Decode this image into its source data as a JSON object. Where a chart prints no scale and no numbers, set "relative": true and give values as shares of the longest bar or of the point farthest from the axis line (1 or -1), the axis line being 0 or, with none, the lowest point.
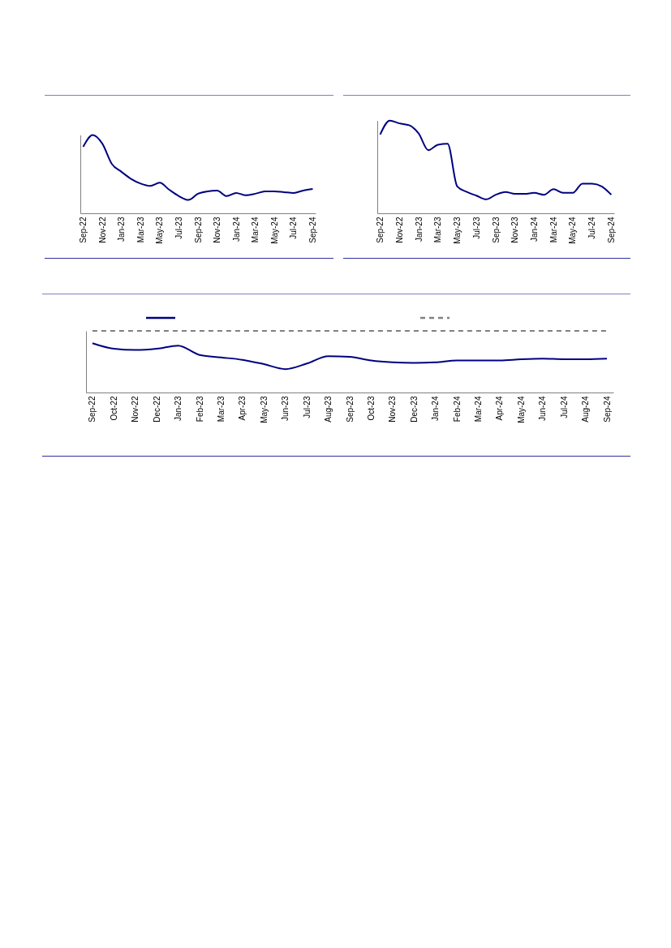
{
  "chart_data": [
    {
      "type": "line",
      "relative": true,
      "categories": [
        "Sep-22",
        null,
        "Nov-22",
        null,
        "Jan-23",
        null,
        "Mar-23",
        null,
        "May-23",
        null,
        "Jul-23",
        null,
        "Sep-23",
        null,
        "Nov-23",
        null,
        "Jan-24",
        null,
        "Mar-24",
        null,
        "May-24",
        null,
        "Jul-24",
        null,
        "Sep-24"
      ],
      "series": [
        {
          "color": "#000080",
          "values": [
            0.85,
            1,
            0.89,
            0.63,
            0.53,
            0.44,
            0.38,
            0.35,
            0.39,
            0.3,
            0.22,
            0.17,
            0.25,
            0.28,
            0.29,
            0.22,
            0.26,
            0.23,
            0.25,
            0.28,
            0.28,
            0.27,
            0.26,
            0.29,
            0.31
          ]
        }
      ]
    },
    {
      "type": "line",
      "relative": true,
      "categories": [
        "Sep-22",
        null,
        "Nov-22",
        null,
        "Jan-23",
        null,
        "Mar-23",
        null,
        "May-23",
        null,
        "Jul-23",
        null,
        "Sep-23",
        null,
        "Nov-23",
        null,
        "Jan-24",
        null,
        "Mar-24",
        null,
        "May-24",
        null,
        "Jul-24",
        null,
        "Sep-24"
      ],
      "series": [
        {
          "color": "#000080",
          "values": [
            0.85,
            1,
            0.97,
            0.95,
            0.86,
            0.68,
            0.74,
            0.75,
            0.29,
            0.23,
            0.19,
            0.15,
            0.2,
            0.23,
            0.21,
            0.21,
            0.22,
            0.2,
            0.26,
            0.22,
            0.22,
            0.32,
            0.32,
            0.29,
            0.2
          ]
        }
      ]
    },
    {
      "type": "line",
      "relative": true,
      "categories": [
        "Sep-22",
        "Oct-22",
        "Nov-22",
        "Dec-22",
        "Jan-23",
        "Feb-23",
        "Mar-23",
        "Apr-23",
        "May-23",
        "Jun-23",
        "Jul-23",
        "Aug-23",
        "Sep-23",
        "Oct-23",
        "Nov-23",
        "Dec-23",
        "Jan-24",
        "Feb-24",
        "Mar-24",
        "Apr-24",
        "May-24",
        "Jun-24",
        "Jul-24",
        "Aug-24",
        "Sep-24"
      ],
      "series": [
        {
          "color": "#000080",
          "line_style": "solid",
          "values": [
            0.8,
            0.71,
            0.69,
            0.71,
            0.76,
            0.61,
            0.57,
            0.53,
            0.46,
            0.38,
            0.47,
            0.59,
            0.58,
            0.52,
            0.49,
            0.48,
            0.49,
            0.52,
            0.52,
            0.52,
            0.54,
            0.55,
            0.54,
            0.54,
            0.55
          ]
        },
        {
          "color": "#808080",
          "line_style": "dashed",
          "values": [
            1,
            1,
            1,
            1,
            1,
            1,
            1,
            1,
            1,
            1,
            1,
            1,
            1,
            1,
            1,
            1,
            1,
            1,
            1,
            1,
            1,
            1,
            1,
            1,
            1
          ]
        }
      ]
    }
  ]
}
